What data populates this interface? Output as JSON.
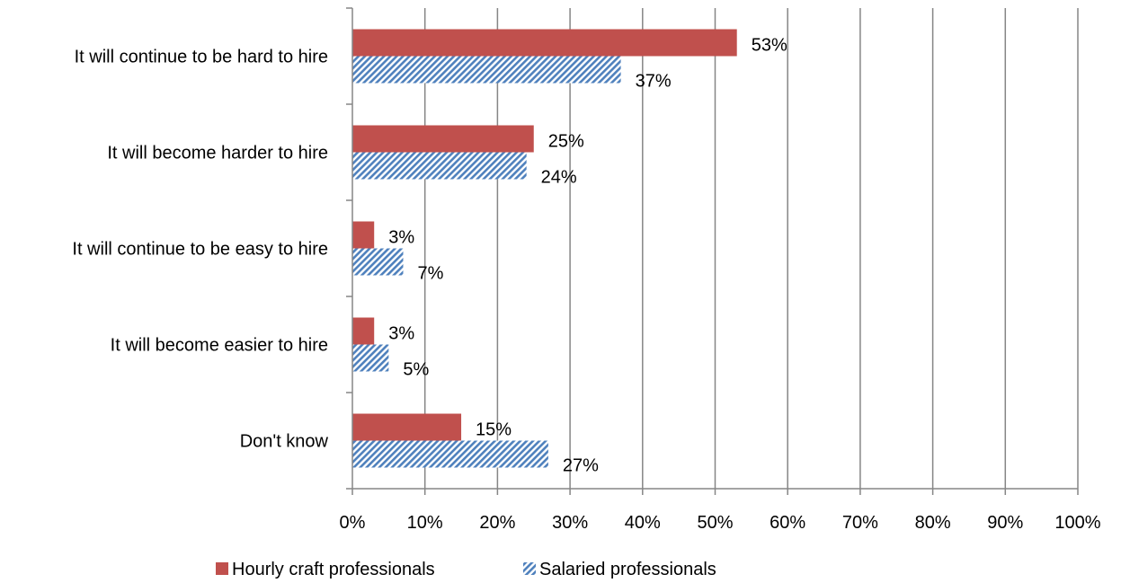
{
  "chart_data": {
    "type": "bar",
    "orientation": "horizontal",
    "categories": [
      "It will continue to be hard to hire",
      "It will become harder to hire",
      "It will continue to be easy to hire",
      "It will become easier to hire",
      "Don't know"
    ],
    "series": [
      {
        "name": "Hourly craft professionals",
        "values": [
          53,
          25,
          3,
          3,
          15
        ],
        "labels": [
          "53%",
          "25%",
          "3%",
          "3%",
          "15%"
        ],
        "color": "#c0504d",
        "pattern": "solid"
      },
      {
        "name": "Salaried professionals",
        "values": [
          37,
          24,
          7,
          5,
          27
        ],
        "labels": [
          "37%",
          "24%",
          "7%",
          "5%",
          "27%"
        ],
        "color": "#4f81bd",
        "pattern": "diagonal-stripes"
      }
    ],
    "xlim": [
      0,
      100
    ],
    "xticks": [
      0,
      10,
      20,
      30,
      40,
      50,
      60,
      70,
      80,
      90,
      100
    ],
    "xtick_labels": [
      "0%",
      "10%",
      "20%",
      "30%",
      "40%",
      "50%",
      "60%",
      "70%",
      "80%",
      "90%",
      "100%"
    ],
    "grid": "vertical",
    "legend": "bottom"
  }
}
